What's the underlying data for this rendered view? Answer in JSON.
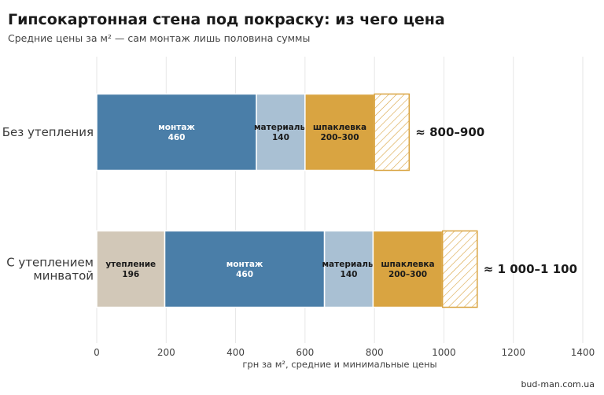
{
  "title": "Гипсокартонная стена под покраску: из чего цена",
  "subtitle": "Средние цены за м² — сам монтаж лишь половина суммы",
  "source": "bud-man.com.ua",
  "colors": {
    "утепление": "#d2c8b8",
    "монтаж": "#4a7ea8",
    "материалы": "#a9c0d3",
    "шпаклевка": "#d9a441",
    "spread_hatch": "#d9a441",
    "grid": "#e6e6e6",
    "bar_edge": "#ffffff"
  },
  "chart_data": {
    "type": "bar",
    "orientation": "horizontal",
    "stacked": true,
    "xlabel": "грн за м², средние и минимальные цены",
    "xlim": [
      0,
      1400
    ],
    "xticks": [
      0,
      200,
      400,
      600,
      800,
      1000,
      1200,
      1400
    ],
    "grid": "vertical",
    "categories": [
      {
        "label_lines": [
          "Без утепления"
        ],
        "total_label": "≈ 800–900",
        "segments": [
          {
            "key": "монтаж",
            "name": "монтаж",
            "value_label": "460",
            "value": 460
          },
          {
            "key": "материалы",
            "name": "материалы",
            "value_label": "140",
            "value": 140
          },
          {
            "key": "шпаклевка",
            "name": "шпаклевка",
            "value_label": "200–300",
            "value": 200,
            "range_extra": 100
          }
        ]
      },
      {
        "label_lines": [
          "С утеплением",
          "минватой"
        ],
        "total_label": "≈ 1 000–1 100",
        "segments": [
          {
            "key": "утепление",
            "name": "утепление",
            "value_label": "196",
            "value": 196
          },
          {
            "key": "монтаж",
            "name": "монтаж",
            "value_label": "460",
            "value": 460
          },
          {
            "key": "материалы",
            "name": "материалы",
            "value_label": "140",
            "value": 140
          },
          {
            "key": "шпаклевка",
            "name": "шпаклевка",
            "value_label": "200–300",
            "value": 200,
            "range_extra": 100
          }
        ]
      }
    ]
  }
}
